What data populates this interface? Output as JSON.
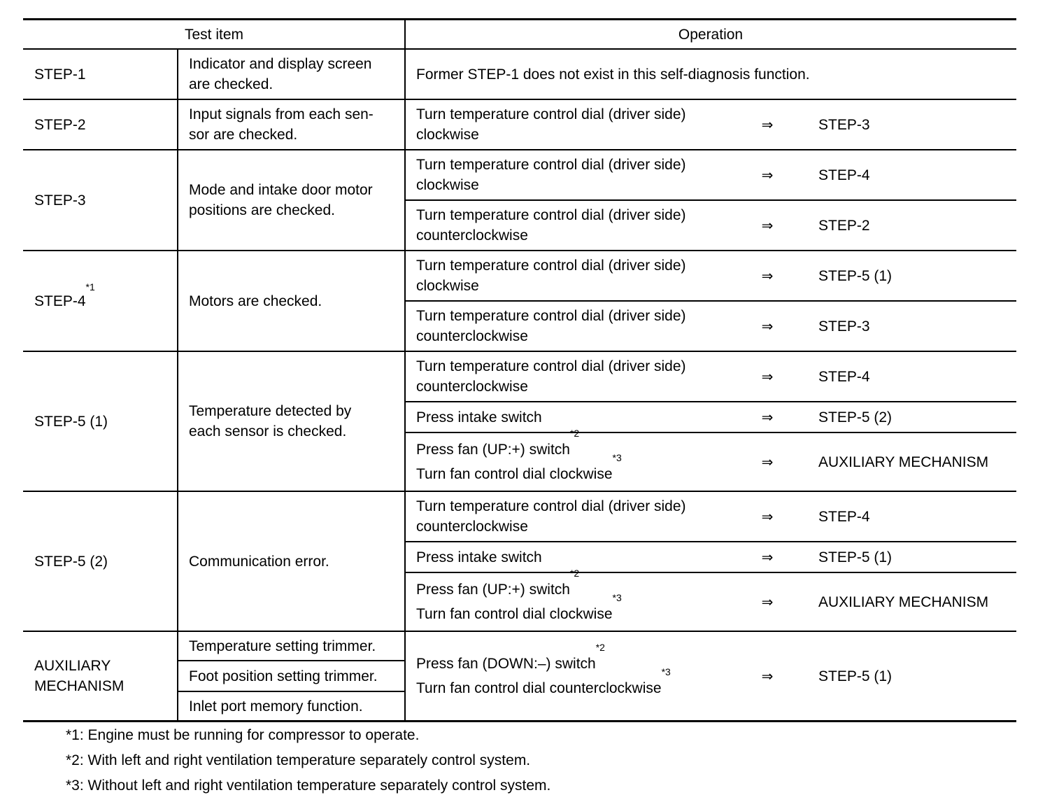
{
  "header": {
    "test_item": "Test item",
    "operation": "Operation"
  },
  "arrow_symbol": "⇒",
  "rows": [
    {
      "step": "STEP-1",
      "step_sup": "",
      "items": [
        "Indicator and display screen\nare checked."
      ],
      "note": "Former STEP-1 does not exist in this self-diagnosis function.",
      "ops": []
    },
    {
      "step": "STEP-2",
      "step_sup": "",
      "items": [
        "Input signals from each sen-\nsor are checked."
      ],
      "ops": [
        {
          "lines": [
            {
              "text": "Turn temperature control dial (driver side)",
              "sup": ""
            },
            {
              "text": "clockwise",
              "sup": ""
            }
          ],
          "target": "STEP-3"
        }
      ]
    },
    {
      "step": "STEP-3",
      "step_sup": "",
      "items": [
        "Mode and intake door motor\npositions are checked."
      ],
      "ops": [
        {
          "lines": [
            {
              "text": "Turn temperature control dial (driver side)",
              "sup": ""
            },
            {
              "text": "clockwise",
              "sup": ""
            }
          ],
          "target": "STEP-4"
        },
        {
          "lines": [
            {
              "text": "Turn temperature control dial (driver side)",
              "sup": ""
            },
            {
              "text": "counterclockwise",
              "sup": ""
            }
          ],
          "target": "STEP-2"
        }
      ]
    },
    {
      "step": "STEP-4",
      "step_sup": "*1",
      "items": [
        "Motors are checked."
      ],
      "ops": [
        {
          "lines": [
            {
              "text": "Turn temperature control dial (driver side)",
              "sup": ""
            },
            {
              "text": "clockwise",
              "sup": ""
            }
          ],
          "target": "STEP-5 (1)"
        },
        {
          "lines": [
            {
              "text": "Turn temperature control dial (driver side)",
              "sup": ""
            },
            {
              "text": "counterclockwise",
              "sup": ""
            }
          ],
          "target": "STEP-3"
        }
      ]
    },
    {
      "step": "STEP-5 (1)",
      "step_sup": "",
      "items": [
        "Temperature detected by\neach sensor is checked."
      ],
      "ops": [
        {
          "lines": [
            {
              "text": "Turn temperature control dial (driver side)",
              "sup": ""
            },
            {
              "text": "counterclockwise",
              "sup": ""
            }
          ],
          "target": "STEP-4"
        },
        {
          "lines": [
            {
              "text": "Press intake switch",
              "sup": ""
            }
          ],
          "target": "STEP-5 (2)"
        },
        {
          "lines": [
            {
              "text": "Press fan (UP:+) switch",
              "sup": "*2"
            },
            {
              "text": "Turn fan control dial clockwise",
              "sup": "*3"
            }
          ],
          "target": "AUXILIARY MECHANISM"
        }
      ]
    },
    {
      "step": "STEP-5 (2)",
      "step_sup": "",
      "items": [
        "Communication error."
      ],
      "ops": [
        {
          "lines": [
            {
              "text": "Turn temperature control dial (driver side)",
              "sup": ""
            },
            {
              "text": "counterclockwise",
              "sup": ""
            }
          ],
          "target": "STEP-4"
        },
        {
          "lines": [
            {
              "text": "Press intake switch",
              "sup": ""
            }
          ],
          "target": "STEP-5 (1)"
        },
        {
          "lines": [
            {
              "text": "Press fan (UP:+) switch",
              "sup": "*2"
            },
            {
              "text": "Turn fan control dial clockwise",
              "sup": "*3"
            }
          ],
          "target": "AUXILIARY MECHANISM"
        }
      ]
    },
    {
      "step": "AUXILIARY\nMECHANISM",
      "step_sup": "",
      "items": [
        "Temperature setting trimmer.",
        "Foot position setting trimmer.",
        "Inlet port memory function."
      ],
      "ops": [
        {
          "lines": [
            {
              "text": "Press fan (DOWN:–) switch",
              "sup": "*2"
            },
            {
              "text": "Turn fan control dial counterclockwise",
              "sup": "*3"
            }
          ],
          "target": "STEP-5 (1)"
        }
      ]
    }
  ],
  "footnotes": [
    "*1: Engine must be running for compressor to operate.",
    "*2: With left and right ventilation temperature separately control system.",
    "*3: Without left and right ventilation temperature separately control system."
  ]
}
